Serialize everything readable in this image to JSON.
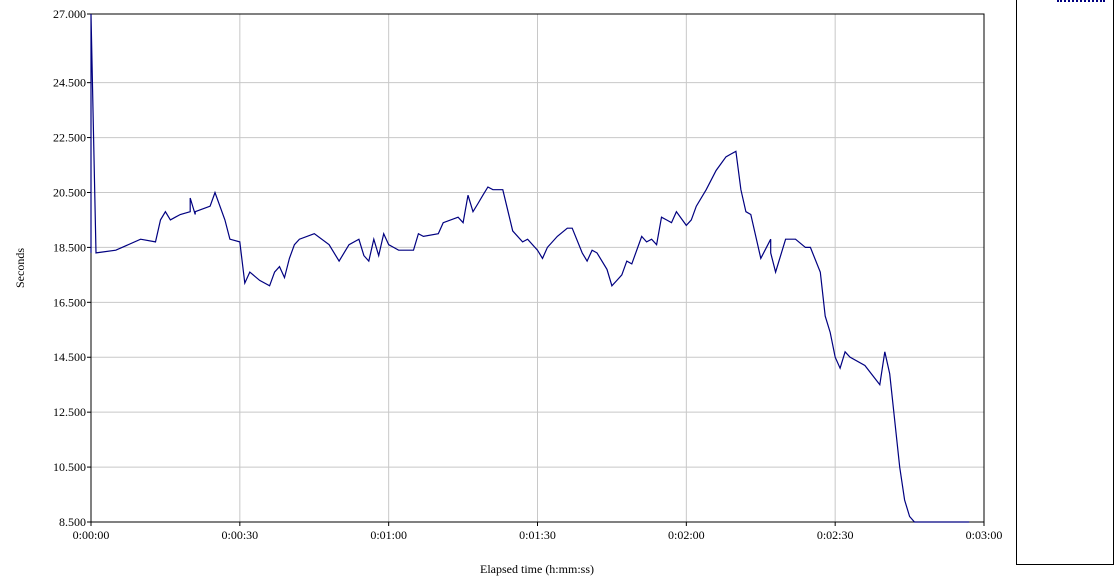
{
  "colors": {
    "series": "#000080",
    "grid": "#c8c8c8",
    "axis": "#000000"
  },
  "chart_data": {
    "type": "line",
    "xlabel": "Elapsed time (h:mm:ss)",
    "ylabel": "Seconds",
    "xlim": [
      "0:00:00",
      "0:03:00"
    ],
    "ylim": [
      8.5,
      27.0
    ],
    "grid": true,
    "x_ticks": [
      "0:00:00",
      "0:00:30",
      "0:01:00",
      "0:01:30",
      "0:02:00",
      "0:02:30",
      "0:03:00"
    ],
    "y_ticks": [
      "8.500",
      "10.500",
      "12.500",
      "14.500",
      "16.500",
      "18.500",
      "20.500",
      "22.500",
      "24.500",
      "27.000"
    ],
    "y_tick_values": [
      8.5,
      10.5,
      12.5,
      14.5,
      16.5,
      18.5,
      20.5,
      22.5,
      24.5,
      27.0
    ],
    "series": [
      {
        "x": [
          "0:00:00",
          "0:00:00",
          "0:00:01",
          "0:00:05",
          "0:00:10",
          "0:00:13",
          "0:00:14",
          "0:00:15",
          "0:00:16",
          "0:00:17",
          "0:00:18",
          "0:00:20",
          "0:00:20",
          "0:00:21",
          "0:00:21",
          "0:00:24",
          "0:00:25",
          "0:00:27",
          "0:00:28",
          "0:00:30",
          "0:00:31",
          "0:00:32",
          "0:00:34",
          "0:00:36",
          "0:00:37",
          "0:00:38",
          "0:00:39",
          "0:00:40",
          "0:00:41",
          "0:00:42",
          "0:00:45",
          "0:00:48",
          "0:00:50",
          "0:00:52",
          "0:00:54",
          "0:00:55",
          "0:00:56",
          "0:00:57",
          "0:00:58",
          "0:00:59",
          "0:01:00",
          "0:01:01",
          "0:01:02",
          "0:01:05",
          "0:01:06",
          "0:01:07",
          "0:01:10",
          "0:01:11",
          "0:01:14",
          "0:01:15",
          "0:01:16",
          "0:01:17",
          "0:01:18",
          "0:01:19",
          "0:01:20",
          "0:01:21",
          "0:01:23",
          "0:01:25",
          "0:01:27",
          "0:01:28",
          "0:01:30",
          "0:01:31",
          "0:01:32",
          "0:01:34",
          "0:01:36",
          "0:01:37",
          "0:01:39",
          "0:01:40",
          "0:01:41",
          "0:01:42",
          "0:01:44",
          "0:01:45",
          "0:01:46",
          "0:01:47",
          "0:01:48",
          "0:01:49",
          "0:01:51",
          "0:01:52",
          "0:01:53",
          "0:01:54",
          "0:01:55",
          "0:01:56",
          "0:01:57",
          "0:01:58",
          "0:02:00",
          "0:02:01",
          "0:02:02",
          "0:02:04",
          "0:02:06",
          "0:02:08",
          "0:02:09",
          "0:02:10",
          "0:02:11",
          "0:02:12",
          "0:02:13",
          "0:02:15",
          "0:02:17",
          "0:02:17",
          "0:02:18",
          "0:02:20",
          "0:02:22",
          "0:02:24",
          "0:02:25",
          "0:02:27",
          "0:02:28",
          "0:02:29",
          "0:02:30",
          "0:02:31",
          "0:02:32",
          "0:02:33",
          "0:02:36",
          "0:02:39",
          "0:02:40",
          "0:02:41",
          "0:02:43",
          "0:02:44",
          "0:02:45",
          "0:02:46",
          "0:02:47",
          "0:02:48",
          "0:02:49",
          "0:02:50",
          "0:02:51",
          "0:02:52",
          "0:02:53",
          "0:02:55",
          "0:02:57"
        ],
        "y": [
          18.3,
          27.0,
          18.3,
          18.4,
          18.8,
          18.7,
          19.5,
          19.8,
          19.5,
          19.6,
          19.7,
          19.8,
          20.3,
          19.7,
          19.8,
          20.0,
          20.5,
          19.5,
          18.8,
          18.7,
          17.2,
          17.6,
          17.3,
          17.1,
          17.6,
          17.8,
          17.4,
          18.1,
          18.6,
          18.8,
          19.0,
          18.6,
          18.0,
          18.6,
          18.8,
          18.2,
          18.0,
          18.8,
          18.2,
          19.0,
          18.6,
          18.5,
          18.4,
          18.4,
          19.0,
          18.9,
          19.0,
          19.4,
          19.6,
          19.4,
          20.4,
          19.8,
          20.1,
          20.4,
          20.7,
          20.6,
          20.6,
          19.1,
          18.7,
          18.8,
          18.4,
          18.1,
          18.5,
          18.9,
          19.2,
          19.2,
          18.3,
          18.0,
          18.4,
          18.3,
          17.7,
          17.1,
          17.3,
          17.5,
          18.0,
          17.9,
          18.9,
          18.7,
          18.8,
          18.6,
          19.6,
          19.5,
          19.4,
          19.8,
          19.3,
          19.5,
          20.0,
          20.6,
          21.3,
          21.8,
          21.9,
          22.0,
          20.6,
          19.8,
          19.7,
          18.1,
          18.8,
          18.3,
          17.6,
          18.8,
          18.8,
          18.5,
          18.5,
          17.6,
          16.0,
          15.4,
          14.5,
          14.1,
          14.7,
          14.5,
          14.2,
          13.5,
          14.7,
          13.9,
          10.5,
          9.3,
          8.7,
          8.5,
          8.5,
          8.5,
          8.5,
          8.5,
          8.5,
          8.5,
          8.5,
          8.5,
          8.5
        ]
      }
    ]
  }
}
